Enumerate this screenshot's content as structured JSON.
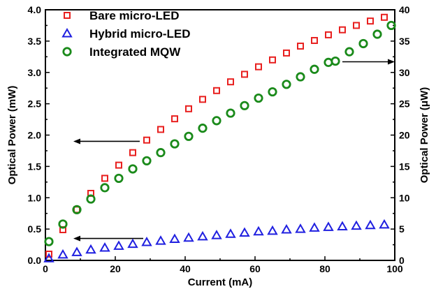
{
  "chart_data": {
    "type": "scatter",
    "xlabel": "Current (mA)",
    "ylabel_left": "Optical Power (mW)",
    "ylabel_right": "Optical Power (μW)",
    "xlim": [
      0,
      100
    ],
    "ylim_left": [
      0,
      4.0
    ],
    "ylim_right": [
      0,
      40
    ],
    "x_ticks": [
      "0",
      "20",
      "40",
      "60",
      "80",
      "100"
    ],
    "y_left_ticks": [
      "0.0",
      "0.5",
      "1.0",
      "1.5",
      "2.0",
      "2.5",
      "3.0",
      "3.5",
      "4.0"
    ],
    "y_right_ticks": [
      "0",
      "5",
      "10",
      "15",
      "20",
      "25",
      "30",
      "35",
      "40"
    ],
    "grid": false,
    "legend_position": "top-left",
    "series": [
      {
        "name": "Bare micro-LED",
        "axis": "left",
        "marker": "square",
        "color": "#e8201f",
        "x": [
          1,
          5,
          9,
          13,
          17,
          21,
          25,
          29,
          33,
          37,
          41,
          45,
          49,
          53,
          57,
          61,
          65,
          69,
          73,
          77,
          81,
          85,
          89,
          93,
          97
        ],
        "y": [
          0.1,
          0.49,
          0.81,
          1.07,
          1.31,
          1.52,
          1.72,
          1.92,
          2.09,
          2.26,
          2.42,
          2.57,
          2.71,
          2.85,
          2.97,
          3.09,
          3.2,
          3.31,
          3.42,
          3.51,
          3.6,
          3.68,
          3.75,
          3.82,
          3.88
        ]
      },
      {
        "name": "Hybrid micro-LED",
        "axis": "left",
        "marker": "triangle",
        "color": "#1f1fe0",
        "x": [
          1,
          5,
          9,
          13,
          17,
          21,
          25,
          29,
          33,
          37,
          41,
          45,
          49,
          53,
          57,
          61,
          65,
          69,
          73,
          77,
          81,
          85,
          89,
          93,
          97
        ],
        "y": [
          0.03,
          0.09,
          0.13,
          0.17,
          0.2,
          0.23,
          0.26,
          0.29,
          0.31,
          0.34,
          0.36,
          0.38,
          0.4,
          0.42,
          0.44,
          0.46,
          0.47,
          0.49,
          0.5,
          0.52,
          0.53,
          0.54,
          0.55,
          0.56,
          0.57
        ]
      },
      {
        "name": "Integrated MQW",
        "axis": "right",
        "marker": "circle",
        "color": "#1a8a1a",
        "x": [
          1,
          5,
          9,
          13,
          17,
          21,
          25,
          29,
          33,
          37,
          41,
          45,
          49,
          53,
          57,
          61,
          65,
          69,
          73,
          77,
          81,
          83,
          87,
          91,
          95,
          99
        ],
        "y": [
          3.0,
          5.8,
          8.1,
          9.8,
          11.6,
          13.1,
          14.6,
          15.9,
          17.2,
          18.6,
          19.8,
          21.1,
          22.3,
          23.5,
          24.7,
          25.9,
          26.9,
          28.1,
          29.3,
          30.5,
          31.6,
          31.8,
          33.3,
          34.6,
          36.1,
          37.5
        ]
      }
    ],
    "annotations": [
      {
        "kind": "arrow",
        "direction": "left",
        "axis": "left",
        "from_x": 27,
        "to_x": 8,
        "y": 1.9
      },
      {
        "kind": "arrow",
        "direction": "left",
        "axis": "left",
        "from_x": 28,
        "to_x": 8,
        "y": 0.35
      },
      {
        "kind": "arrow",
        "direction": "right",
        "axis": "left",
        "from_x": 85,
        "to_x": 100,
        "y": 3.17
      }
    ]
  }
}
